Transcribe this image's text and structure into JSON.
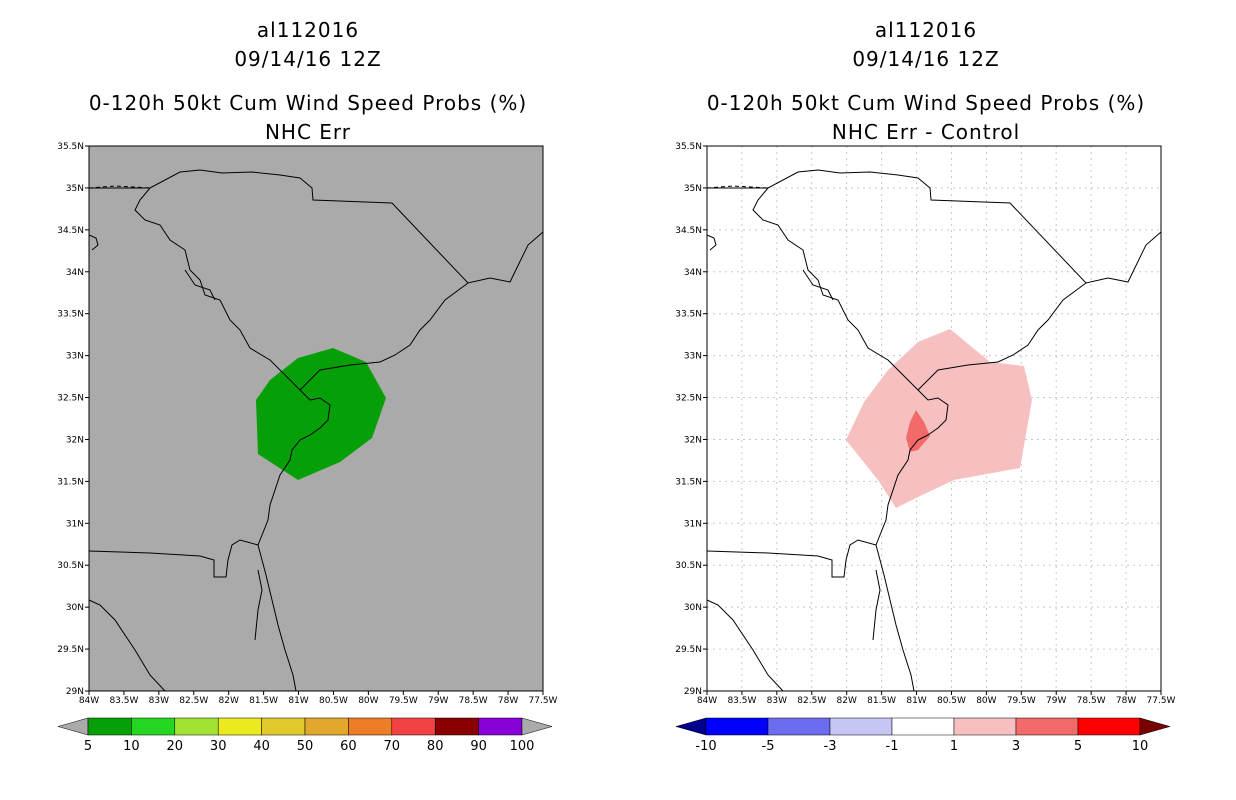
{
  "left_panel": {
    "titles": [
      "al112016",
      "09/14/16 12Z",
      "0-120h 50kt Cum Wind Speed Probs (%)",
      "NHC Err"
    ],
    "colorbar": {
      "labels": [
        "5",
        "10",
        "20",
        "30",
        "40",
        "50",
        "60",
        "70",
        "80",
        "90",
        "100"
      ],
      "colors": [
        "#aaaaaa",
        "#079f07",
        "#24d620",
        "#a2e232",
        "#eaea1f",
        "#e2c92b",
        "#e2a72d",
        "#ed7d27",
        "#f24241",
        "#8a0000",
        "#8800d8",
        "#aaaaaa"
      ]
    },
    "background_color": "#aaaaaa"
  },
  "right_panel": {
    "titles": [
      "al112016",
      "09/14/16 12Z",
      "0-120h 50kt Cum Wind Speed Probs (%)",
      "NHC Err - Control"
    ],
    "colorbar": {
      "labels": [
        "-10",
        "-5",
        "-3",
        "-1",
        "1",
        "3",
        "5",
        "10"
      ],
      "colors": [
        "#00008c",
        "#0000ff",
        "#6c6cf0",
        "#c6c6f5",
        "#ffffff",
        "#f7c0c0",
        "#f26a6a",
        "#ff0000",
        "#780000"
      ]
    },
    "background_color": "#ffffff"
  },
  "axes": {
    "lat_labels": [
      "35.5N",
      "35N",
      "34.5N",
      "34N",
      "33.5N",
      "33N",
      "32.5N",
      "32N",
      "31.5N",
      "31N",
      "30.5N",
      "30N",
      "29.5N",
      "29N"
    ],
    "lon_labels": [
      "84W",
      "83.5W",
      "83W",
      "82.5W",
      "82W",
      "81.5W",
      "81W",
      "80.5W",
      "80W",
      "79.5W",
      "79W",
      "78.5W",
      "78W",
      "77.5W"
    ]
  }
}
